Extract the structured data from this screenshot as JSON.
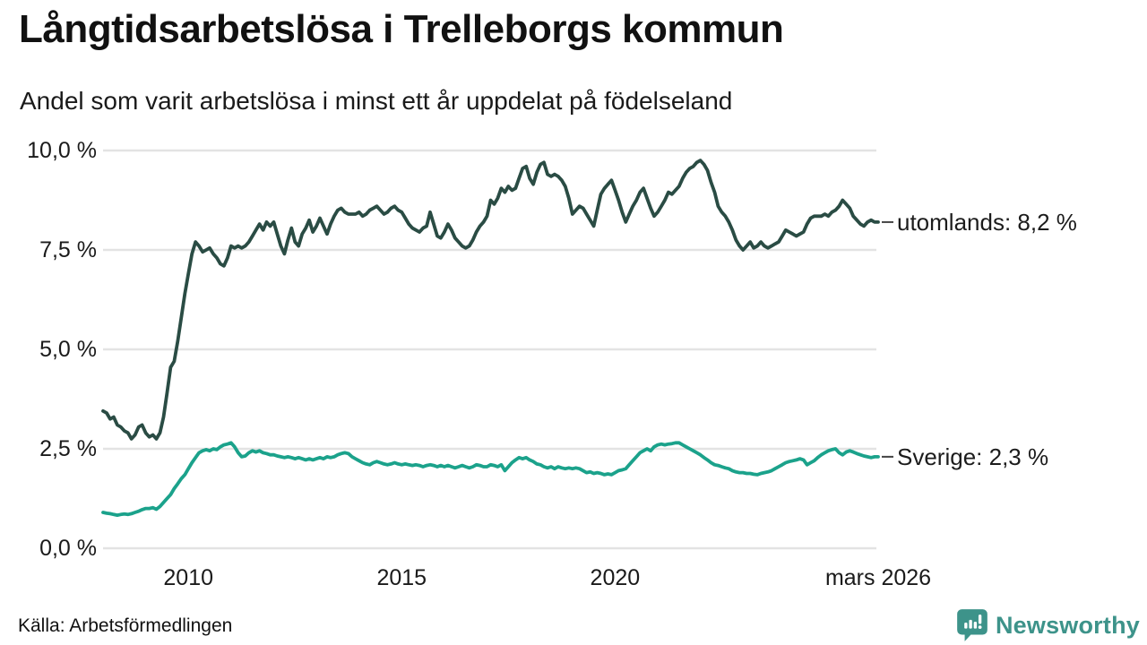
{
  "title": "Långtidsarbetslösa i Trelleborgs kommun",
  "subtitle": "Andel som varit arbetslösa i minst ett år uppdelat på födelseland",
  "source": "Källa: Arbetsförmedlingen",
  "branding": {
    "logo_text": "Newsworthy",
    "logo_color": "#3d938a"
  },
  "colors": {
    "grid": "#e3e3e3",
    "text": "#111111",
    "label_dash": "#444444",
    "series_utomlands": "#2a4c44",
    "series_sverige": "#1ba28b"
  },
  "chart_data": {
    "type": "line",
    "title": "Långtidsarbetslösa i Trelleborgs kommun",
    "subtitle": "Andel som varit arbetslösa i minst ett år uppdelat på födelseland",
    "unit": "%",
    "x_start": "2008-01",
    "x_end": "2026-03",
    "frequency": "monthly",
    "ylim": [
      0,
      10
    ],
    "grid": true,
    "legend_position": "right-end-labels",
    "yticks": [
      {
        "value": 0,
        "label": "0,0 %"
      },
      {
        "value": 2.5,
        "label": "2,5 %"
      },
      {
        "value": 5,
        "label": "5,0 %"
      },
      {
        "value": 7.5,
        "label": "7,5 %"
      },
      {
        "value": 10,
        "label": "10,0 %"
      }
    ],
    "xticks": [
      {
        "t": 2010,
        "label": "2010"
      },
      {
        "t": 2015,
        "label": "2015"
      },
      {
        "t": 2020,
        "label": "2020"
      },
      {
        "t": 2026.167,
        "label": "mars 2026"
      }
    ],
    "series": [
      {
        "name": "utomlands",
        "end_label": "utomlands: 8,2 %",
        "last_value": 8.2,
        "color": "#2a4c44",
        "values": [
          3.45,
          3.4,
          3.25,
          3.3,
          3.1,
          3.05,
          2.95,
          2.9,
          2.75,
          2.85,
          3.05,
          3.1,
          2.9,
          2.8,
          2.85,
          2.75,
          2.9,
          3.3,
          3.9,
          4.55,
          4.7,
          5.2,
          5.8,
          6.4,
          6.9,
          7.4,
          7.7,
          7.6,
          7.45,
          7.5,
          7.55,
          7.4,
          7.3,
          7.15,
          7.1,
          7.3,
          7.6,
          7.55,
          7.6,
          7.55,
          7.6,
          7.7,
          7.85,
          8.0,
          8.15,
          8.0,
          8.2,
          8.1,
          8.2,
          7.9,
          7.6,
          7.4,
          7.75,
          8.05,
          7.7,
          7.6,
          7.9,
          8.05,
          8.25,
          7.95,
          8.1,
          8.3,
          8.1,
          7.9,
          8.15,
          8.35,
          8.5,
          8.55,
          8.45,
          8.4,
          8.4,
          8.4,
          8.45,
          8.35,
          8.4,
          8.5,
          8.55,
          8.6,
          8.5,
          8.4,
          8.45,
          8.55,
          8.6,
          8.5,
          8.45,
          8.3,
          8.15,
          8.05,
          8.0,
          7.95,
          8.05,
          8.1,
          8.45,
          8.15,
          7.85,
          7.8,
          7.95,
          8.15,
          8.0,
          7.8,
          7.7,
          7.6,
          7.55,
          7.6,
          7.75,
          7.95,
          8.1,
          8.2,
          8.35,
          8.75,
          8.65,
          8.8,
          9.05,
          8.95,
          9.1,
          9.0,
          9.05,
          9.3,
          9.55,
          9.6,
          9.3,
          9.15,
          9.45,
          9.65,
          9.7,
          9.4,
          9.35,
          9.4,
          9.35,
          9.25,
          9.1,
          8.8,
          8.4,
          8.5,
          8.6,
          8.55,
          8.4,
          8.25,
          8.1,
          8.5,
          8.9,
          9.05,
          9.15,
          9.25,
          9.0,
          8.75,
          8.45,
          8.2,
          8.4,
          8.6,
          8.75,
          8.95,
          9.05,
          8.8,
          8.55,
          8.35,
          8.45,
          8.6,
          8.75,
          8.95,
          8.9,
          9.0,
          9.1,
          9.3,
          9.45,
          9.55,
          9.6,
          9.7,
          9.75,
          9.65,
          9.5,
          9.2,
          8.95,
          8.6,
          8.45,
          8.35,
          8.2,
          8.0,
          7.75,
          7.6,
          7.5,
          7.6,
          7.7,
          7.55,
          7.6,
          7.7,
          7.6,
          7.55,
          7.6,
          7.65,
          7.7,
          7.85,
          8.0,
          7.95,
          7.9,
          7.85,
          7.9,
          7.95,
          8.15,
          8.3,
          8.35,
          8.35,
          8.35,
          8.4,
          8.35,
          8.45,
          8.5,
          8.6,
          8.75,
          8.65,
          8.55,
          8.35,
          8.25,
          8.15,
          8.1,
          8.2,
          8.25,
          8.2,
          8.2
        ]
      },
      {
        "name": "Sverige",
        "end_label": "Sverige: 2,3 %",
        "last_value": 2.3,
        "color": "#1ba28b",
        "values": [
          0.9,
          0.88,
          0.87,
          0.85,
          0.83,
          0.85,
          0.86,
          0.85,
          0.87,
          0.9,
          0.93,
          0.97,
          1.0,
          1.0,
          1.02,
          0.98,
          1.05,
          1.15,
          1.25,
          1.35,
          1.5,
          1.62,
          1.75,
          1.85,
          2.0,
          2.15,
          2.28,
          2.4,
          2.45,
          2.48,
          2.45,
          2.5,
          2.48,
          2.55,
          2.6,
          2.62,
          2.65,
          2.55,
          2.4,
          2.3,
          2.32,
          2.4,
          2.45,
          2.42,
          2.45,
          2.4,
          2.38,
          2.35,
          2.35,
          2.32,
          2.3,
          2.28,
          2.3,
          2.28,
          2.25,
          2.28,
          2.25,
          2.22,
          2.25,
          2.22,
          2.25,
          2.28,
          2.25,
          2.3,
          2.28,
          2.3,
          2.35,
          2.38,
          2.4,
          2.38,
          2.3,
          2.25,
          2.2,
          2.15,
          2.12,
          2.1,
          2.15,
          2.18,
          2.15,
          2.12,
          2.1,
          2.12,
          2.15,
          2.12,
          2.1,
          2.12,
          2.1,
          2.08,
          2.1,
          2.08,
          2.05,
          2.08,
          2.1,
          2.08,
          2.05,
          2.08,
          2.05,
          2.08,
          2.05,
          2.02,
          2.05,
          2.08,
          2.05,
          2.02,
          2.05,
          2.1,
          2.08,
          2.05,
          2.05,
          2.1,
          2.08,
          2.05,
          2.1,
          1.95,
          2.05,
          2.15,
          2.22,
          2.28,
          2.25,
          2.28,
          2.22,
          2.18,
          2.12,
          2.1,
          2.05,
          2.02,
          2.05,
          2.0,
          2.05,
          2.02,
          2.0,
          2.02,
          2.0,
          2.02,
          2.0,
          1.95,
          1.9,
          1.92,
          1.88,
          1.9,
          1.88,
          1.85,
          1.87,
          1.85,
          1.9,
          1.95,
          1.97,
          2.0,
          2.1,
          2.2,
          2.3,
          2.4,
          2.45,
          2.5,
          2.45,
          2.55,
          2.6,
          2.62,
          2.6,
          2.62,
          2.63,
          2.65,
          2.65,
          2.6,
          2.55,
          2.5,
          2.45,
          2.4,
          2.35,
          2.28,
          2.22,
          2.15,
          2.1,
          2.08,
          2.05,
          2.02,
          2.0,
          1.95,
          1.92,
          1.9,
          1.9,
          1.88,
          1.88,
          1.86,
          1.85,
          1.88,
          1.9,
          1.92,
          1.95,
          2.0,
          2.05,
          2.1,
          2.15,
          2.18,
          2.2,
          2.22,
          2.25,
          2.22,
          2.1,
          2.15,
          2.2,
          2.28,
          2.35,
          2.4,
          2.45,
          2.48,
          2.5,
          2.4,
          2.35,
          2.42,
          2.45,
          2.42,
          2.38,
          2.35,
          2.32,
          2.3,
          2.28,
          2.3,
          2.3
        ]
      }
    ]
  }
}
